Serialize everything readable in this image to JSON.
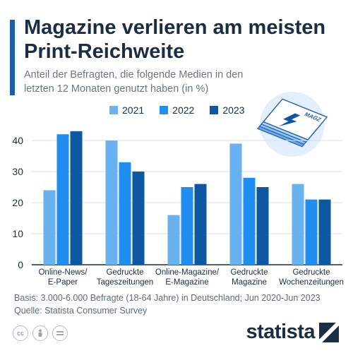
{
  "title": "Magazine verlieren am meisten Print-Reichweite",
  "subtitle": "Anteil der Befragten, die folgende Medien in den letzten 12 Monaten genutzt haben (in %)",
  "illustration_label": "MAGZ",
  "footnote_basis": "Basis: 3.000-6.000 Befragte (18-64 Jahre) in Deutschland; Jun 2020-Jun 2023",
  "footnote_source": "Quelle: Statista Consumer Survey",
  "brand": "statista",
  "license_icons": [
    "cc-icon",
    "person-icon",
    "equals-icon"
  ],
  "colors": {
    "accent": "#1f5fa8",
    "s2021": "#69b2f0",
    "s2022": "#1f8ef0",
    "s2023": "#0d57a3"
  },
  "chart_data": {
    "type": "bar",
    "categories": [
      [
        "Online-News/",
        "E-Paper"
      ],
      [
        "Gedruckte",
        "Tageszeitungen"
      ],
      [
        "Online-Magazine/",
        "E-Magazine"
      ],
      [
        "Gedruckte",
        "Magazine"
      ],
      [
        "Gedruckte",
        "Wochenzeitungen"
      ]
    ],
    "series": [
      {
        "name": "2021",
        "values": [
          24,
          40,
          16,
          39,
          26
        ]
      },
      {
        "name": "2022",
        "values": [
          42,
          33,
          25,
          28,
          21
        ]
      },
      {
        "name": "2023",
        "values": [
          43,
          30,
          26,
          25,
          21
        ]
      }
    ],
    "yticks": [
      0,
      10,
      20,
      30,
      40
    ],
    "ylim": [
      0,
      45
    ],
    "grid": true,
    "legend": "top-center"
  }
}
